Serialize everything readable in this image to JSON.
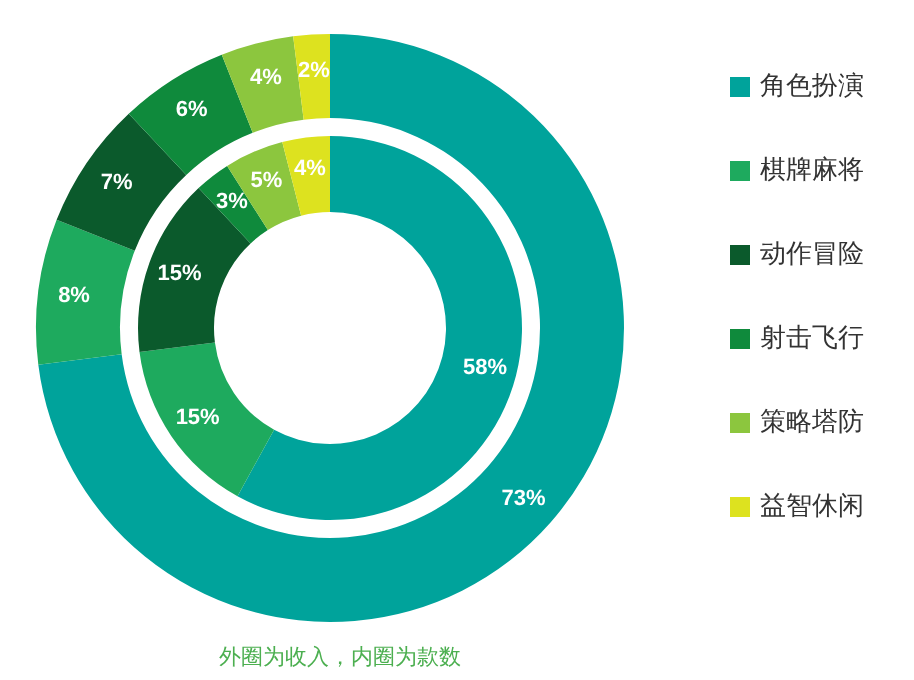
{
  "chart_data": {
    "type": "donut",
    "categories": [
      "角色扮演",
      "棋牌麻将",
      "动作冒险",
      "射击飞行",
      "策略塔防",
      "益智休闲"
    ],
    "colors": [
      "#00a39b",
      "#1eaa5e",
      "#0b5a2c",
      "#0f8a3c",
      "#8cc63e",
      "#dde21f"
    ],
    "series": [
      {
        "values": [
          73,
          8,
          7,
          6,
          4,
          2
        ],
        "value_labels": [
          "73%",
          "8%",
          "7%",
          "6%",
          "4%",
          "2%"
        ]
      },
      {
        "values": [
          58,
          15,
          15,
          3,
          5,
          4
        ],
        "value_labels": [
          "58%",
          "15%",
          "15%",
          "3%",
          "5%",
          "4%"
        ]
      }
    ],
    "legend": "right",
    "annotations": [
      "外圈为收入，内圈为款数"
    ]
  }
}
